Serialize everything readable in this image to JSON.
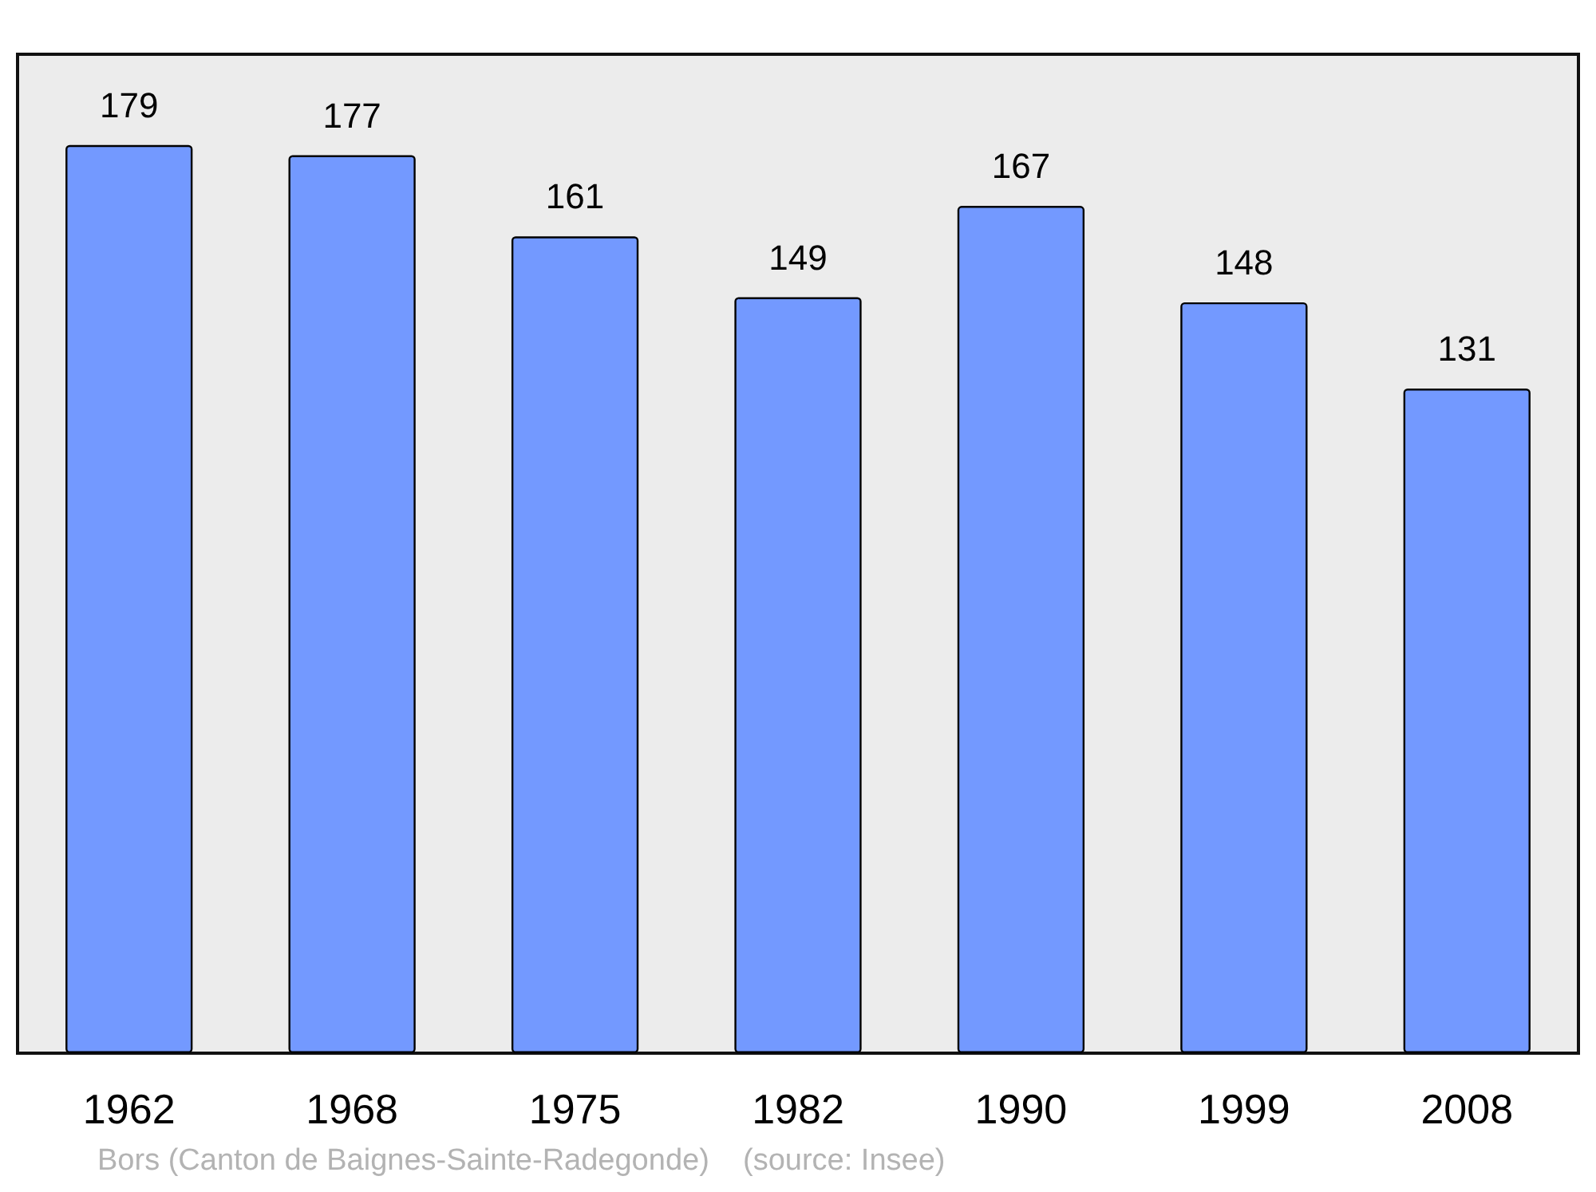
{
  "chart_data": {
    "type": "bar",
    "categories": [
      "1962",
      "1968",
      "1975",
      "1982",
      "1990",
      "1999",
      "2008"
    ],
    "values": [
      179,
      177,
      161,
      149,
      167,
      148,
      131
    ],
    "color": "#7399ff",
    "data_labels": true,
    "annotations": [
      "Bors (Canton de Baignes-Sainte-Radegonde)    (source: Insee)"
    ]
  }
}
